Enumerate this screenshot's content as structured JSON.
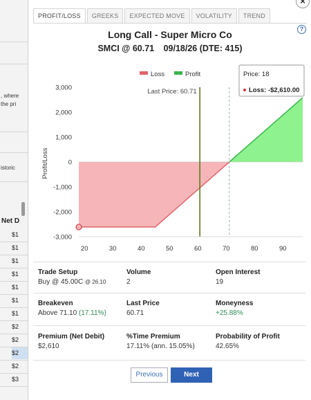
{
  "background_page": {
    "snippets": [
      ", where",
      "the pri",
      "istoric"
    ],
    "column_header": "Net D",
    "cells": [
      "$1",
      "$1",
      "$1",
      "$1",
      "$1",
      "$1",
      "$1",
      "$2",
      "$2",
      "$2",
      "$2",
      "$3"
    ]
  },
  "tabs": [
    "PROFIT/LOSS",
    "GREEKS",
    "EXPECTED MOVE",
    "VOLATILITY",
    "TREND"
  ],
  "active_tab": "PROFIT/LOSS",
  "close_icon": "×",
  "help_icon": "?",
  "title": "Long Call - Super Micro Co",
  "subtitle": {
    "symbol_price": "SMCI @ 60.71",
    "expiry": "09/18/26 (DTE: 415)"
  },
  "legend": {
    "loss": "Loss",
    "profit": "Profit"
  },
  "colors": {
    "loss_fill": "#f6b6b9",
    "loss_line": "#e0646c",
    "profit_fill": "#8ef28e",
    "profit_line": "#39b54a",
    "last_price_line": "#5c7a1e",
    "accent": "#2f62b5"
  },
  "last_price_label": "Last Price: 60.71",
  "tooltip": {
    "price": "Price: 18",
    "loss": "Loss: -$2,610.00"
  },
  "chart_data": {
    "type": "area",
    "ylabel": "Profit/Loss",
    "xlim": [
      18,
      97
    ],
    "ylim": [
      -3000,
      3000
    ],
    "x_ticks": [
      20,
      30,
      40,
      50,
      60,
      70,
      80,
      90
    ],
    "y_ticks": [
      3000,
      2000,
      1000,
      0,
      -1000,
      -2000,
      -3000
    ],
    "y_tick_labels": [
      "3,000",
      "2,000",
      "1,000",
      "0",
      "-1,000",
      "-2,000",
      "-3,000"
    ],
    "x_tick_labels": [
      "20",
      "30",
      "40",
      "50",
      "60",
      "70",
      "80",
      "90"
    ],
    "payoff_points": [
      [
        18,
        -2610
      ],
      [
        45,
        -2610
      ],
      [
        71.1,
        0
      ],
      [
        97,
        2580
      ]
    ],
    "last_price": 60.71,
    "breakeven": 71.1,
    "grid": false
  },
  "details": {
    "trade_setup": {
      "label": "Trade Setup",
      "value": "Buy @ 45.00C",
      "value_small": "@ 26.10"
    },
    "volume": {
      "label": "Volume",
      "value": "2"
    },
    "open_interest": {
      "label": "Open Interest",
      "value": "19"
    },
    "breakeven": {
      "label": "Breakeven",
      "value": "Above 71.10",
      "value_pct": "(17.11%)"
    },
    "last_price": {
      "label": "Last Price",
      "value": "60.71"
    },
    "moneyness": {
      "label": "Moneyness",
      "value": "+25.88%"
    },
    "premium": {
      "label": "Premium (Net Debit)",
      "value": "$2,610"
    },
    "time_premium": {
      "label": "%Time Premium",
      "value": "17.11% (ann. 15.05%)"
    },
    "probability": {
      "label": "Probability of Profit",
      "value": "42.65%"
    }
  },
  "buttons": {
    "previous": "Previous",
    "next": "Next"
  }
}
